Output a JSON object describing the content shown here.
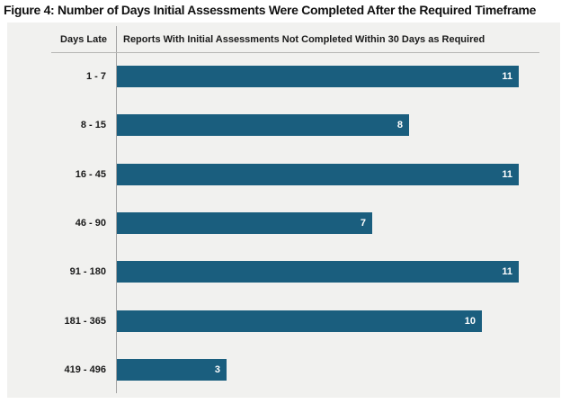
{
  "figure": {
    "title": "Figure 4: Number of Days Initial Assessments Were Completed After the Required Timeframe"
  },
  "table_header": {
    "left": "Days Late",
    "right": "Reports With Initial Assessments Not Completed Within 30 Days as Required"
  },
  "chart_data": {
    "type": "bar",
    "orientation": "horizontal",
    "title": "Figure 4: Number of Days Initial Assessments Were Completed After the Required Timeframe",
    "category_axis_label": "Days Late",
    "value_axis_label": "Reports With Initial Assessments Not Completed Within 30 Days as Required",
    "categories": [
      "1 - 7",
      "8 - 15",
      "16 - 45",
      "46 - 90",
      "91 - 180",
      "181 - 365",
      "419 - 496"
    ],
    "values": [
      11,
      8,
      11,
      7,
      11,
      10,
      3
    ],
    "xlim": [
      0,
      11
    ],
    "value_labels": "inside-end",
    "grid": false,
    "legend": "none"
  },
  "colors": {
    "bar": "#1a5e7e",
    "panel_background": "#f1f1ef",
    "page_background": "#ffffff",
    "axis_line": "#a3a3a3",
    "rule_line": "#b5b5b3",
    "label_text": "#1a1a1a",
    "value_text": "#ffffff"
  }
}
